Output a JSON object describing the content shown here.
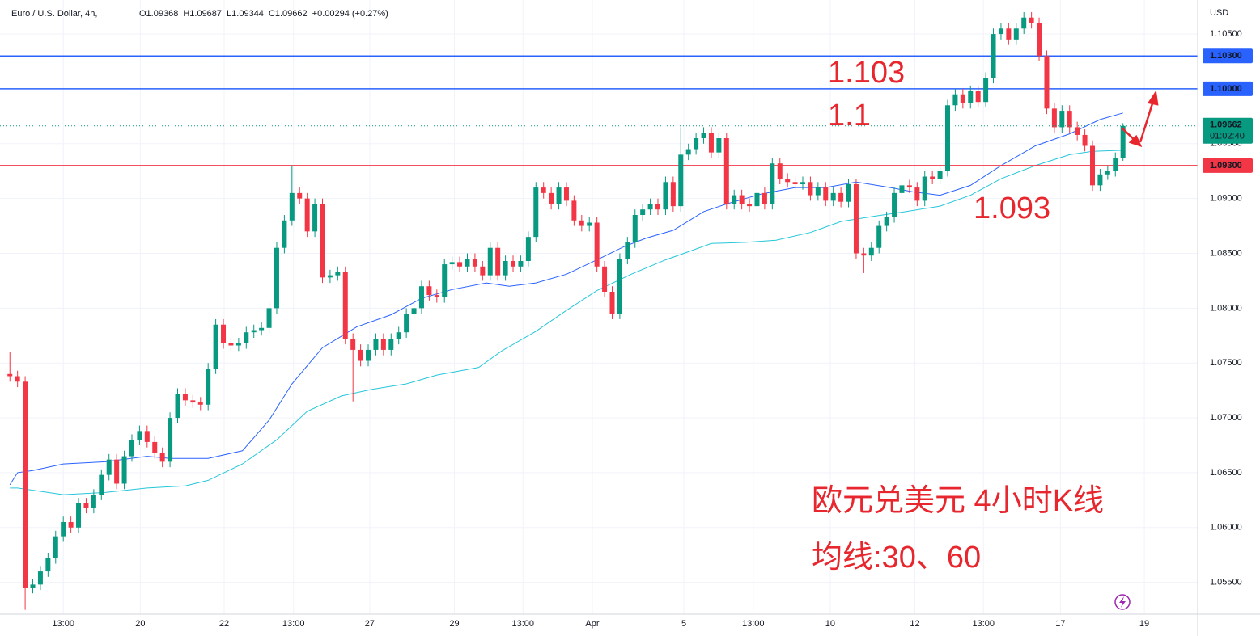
{
  "chart_data": {
    "type": "candlestick",
    "title": "Euro / U.S. Dollar, 4h,",
    "legend_values": [
      "O1.09368",
      "H1.09687",
      "L1.09344",
      "C1.09662",
      "+0.00294 (+0.27%)"
    ],
    "currency": "USD",
    "up_color": "#089981",
    "down_color": "#f23645",
    "open": [
      1.074,
      1.0738,
      1.0733,
      1.0545,
      1.0548,
      1.056,
      1.0572,
      1.0592,
      1.0605,
      1.06,
      1.0622,
      1.0618,
      1.063,
      1.0648,
      1.0662,
      1.064,
      1.0665,
      1.068,
      1.0688,
      1.0678,
      1.0668,
      1.066,
      1.07,
      1.0722,
      1.0716,
      1.0714,
      1.0712,
      1.0745,
      1.0785,
      1.0768,
      1.0766,
      1.0768,
      1.0778,
      1.078,
      1.0782,
      1.08,
      1.0855,
      1.088,
      1.0905,
      1.09,
      1.087,
      1.0895,
      1.0828,
      1.083,
      1.0833,
      1.0772,
      1.0762,
      1.0752,
      1.0762,
      1.0772,
      1.0762,
      1.0772,
      1.0778,
      1.0795,
      1.08,
      1.082,
      1.0812,
      1.081,
      1.084,
      1.0842,
      1.0838,
      1.0845,
      1.0838,
      1.083,
      1.0855,
      1.083,
      1.0843,
      1.0838,
      1.0843,
      1.0865,
      1.091,
      1.0905,
      1.0895,
      1.091,
      1.0898,
      1.088,
      1.0875,
      1.0878,
      1.0838,
      1.0815,
      1.0795,
      1.0845,
      1.086,
      1.0885,
      1.089,
      1.0895,
      1.089,
      1.0915,
      1.0893,
      1.094,
      1.0945,
      1.0955,
      1.096,
      1.0942,
      1.0955,
      1.0895,
      1.0903,
      1.0895,
      1.0893,
      1.0905,
      1.0895,
      1.0932,
      1.0918,
      1.0915,
      1.0913,
      1.0915,
      1.0903,
      1.091,
      1.0898,
      1.0905,
      1.0897,
      1.0913,
      1.085,
      1.0848,
      1.0855,
      1.0875,
      1.0883,
      1.0905,
      1.0912,
      1.091,
      1.0898,
      1.092,
      1.0918,
      1.0925,
      1.0985,
      1.0995,
      1.0987,
      1.0998,
      1.0988,
      1.101,
      1.105,
      1.1055,
      1.1045,
      1.1055,
      1.1065,
      1.106,
      1.103,
      1.0982,
      1.0965,
      1.098,
      1.0965,
      1.0958,
      1.0948,
      1.0912,
      1.0922,
      1.0925,
      1.09368
    ],
    "high": [
      1.076,
      1.0743,
      1.0738,
      1.0553,
      1.0565,
      1.0577,
      1.0597,
      1.061,
      1.061,
      1.0627,
      1.0627,
      1.0635,
      1.0653,
      1.0667,
      1.0667,
      1.067,
      1.0685,
      1.0693,
      1.0693,
      1.0683,
      1.0673,
      1.0705,
      1.0727,
      1.0727,
      1.0721,
      1.0719,
      1.075,
      1.079,
      1.079,
      1.0773,
      1.0773,
      1.0783,
      1.0785,
      1.0787,
      1.0805,
      1.086,
      1.0885,
      1.093,
      1.091,
      1.0905,
      1.09,
      1.09,
      1.0835,
      1.0838,
      1.0838,
      1.0777,
      1.0767,
      1.0767,
      1.0777,
      1.0777,
      1.0777,
      1.0783,
      1.08,
      1.0805,
      1.0825,
      1.0825,
      1.0817,
      1.0845,
      1.0847,
      1.0847,
      1.085,
      1.085,
      1.0843,
      1.086,
      1.086,
      1.0848,
      1.0848,
      1.0848,
      1.087,
      1.0915,
      1.0915,
      1.091,
      1.0915,
      1.0915,
      1.0903,
      1.0885,
      1.0883,
      1.0883,
      1.0843,
      1.082,
      1.085,
      1.0865,
      1.089,
      1.0895,
      1.09,
      1.09,
      1.092,
      1.092,
      1.0965,
      1.095,
      1.096,
      1.0965,
      1.0965,
      1.096,
      1.096,
      1.0908,
      1.0908,
      1.09,
      1.091,
      1.091,
      1.0937,
      1.0937,
      1.0923,
      1.092,
      1.092,
      1.092,
      1.0915,
      1.0915,
      1.091,
      1.091,
      1.0918,
      1.0918,
      1.0855,
      1.086,
      1.088,
      1.0888,
      1.091,
      1.0917,
      1.0917,
      1.0915,
      1.0925,
      1.0925,
      1.093,
      1.099,
      1.1,
      1.1,
      1.1003,
      1.1003,
      1.1015,
      1.1055,
      1.106,
      1.106,
      1.106,
      1.107,
      1.107,
      1.1065,
      1.1035,
      1.0987,
      1.0985,
      1.0985,
      1.097,
      1.0963,
      1.0953,
      1.0927,
      1.093,
      1.0942,
      1.09687
    ],
    "low": [
      1.0733,
      1.0728,
      1.0525,
      1.054,
      1.0543,
      1.0555,
      1.0567,
      1.0587,
      1.0595,
      1.0595,
      1.0613,
      1.0613,
      1.0625,
      1.0643,
      1.0635,
      1.0635,
      1.066,
      1.0675,
      1.0673,
      1.0663,
      1.0655,
      1.0655,
      1.0695,
      1.0711,
      1.0709,
      1.0707,
      1.0707,
      1.074,
      1.0763,
      1.0761,
      1.0761,
      1.0763,
      1.0773,
      1.0775,
      1.0777,
      1.0795,
      1.085,
      1.0875,
      1.0895,
      1.0865,
      1.0865,
      1.0823,
      1.0823,
      1.0825,
      1.0767,
      1.0715,
      1.0747,
      1.0747,
      1.0757,
      1.0757,
      1.0757,
      1.0767,
      1.0773,
      1.079,
      1.0795,
      1.0807,
      1.0805,
      1.0805,
      1.0835,
      1.0833,
      1.0833,
      1.0833,
      1.0825,
      1.0825,
      1.0825,
      1.0825,
      1.0833,
      1.0833,
      1.0838,
      1.086,
      1.09,
      1.089,
      1.089,
      1.0893,
      1.0875,
      1.087,
      1.087,
      1.0833,
      1.081,
      1.079,
      1.079,
      1.084,
      1.0855,
      1.088,
      1.0885,
      1.0885,
      1.0885,
      1.0888,
      1.0888,
      1.0935,
      1.094,
      1.095,
      1.0937,
      1.0937,
      1.089,
      1.089,
      1.089,
      1.0888,
      1.0888,
      1.089,
      1.089,
      1.0913,
      1.091,
      1.0908,
      1.0908,
      1.0898,
      1.0898,
      1.0893,
      1.0893,
      1.0892,
      1.0892,
      1.0845,
      1.0832,
      1.0843,
      1.085,
      1.087,
      1.0878,
      1.09,
      1.0905,
      1.0893,
      1.0893,
      1.0913,
      1.0913,
      1.092,
      1.098,
      1.0982,
      1.0982,
      1.0983,
      1.0983,
      1.1005,
      1.1045,
      1.104,
      1.104,
      1.105,
      1.1055,
      1.1025,
      1.0977,
      1.096,
      1.096,
      1.096,
      1.0953,
      1.0943,
      1.0907,
      1.0907,
      1.0917,
      1.092,
      1.09344
    ],
    "close": [
      1.0738,
      1.0733,
      1.0545,
      1.0548,
      1.056,
      1.0572,
      1.0592,
      1.0605,
      1.06,
      1.0622,
      1.0618,
      1.063,
      1.0648,
      1.0662,
      1.064,
      1.0665,
      1.068,
      1.0688,
      1.0678,
      1.0668,
      1.066,
      1.07,
      1.0722,
      1.0716,
      1.0714,
      1.0712,
      1.0745,
      1.0785,
      1.0768,
      1.0766,
      1.0768,
      1.0778,
      1.078,
      1.0782,
      1.08,
      1.0855,
      1.088,
      1.0905,
      1.09,
      1.087,
      1.0895,
      1.0828,
      1.083,
      1.0833,
      1.0772,
      1.0762,
      1.0752,
      1.0762,
      1.0772,
      1.0762,
      1.0772,
      1.0778,
      1.0795,
      1.08,
      1.082,
      1.0812,
      1.081,
      1.084,
      1.0842,
      1.0838,
      1.0845,
      1.0838,
      1.083,
      1.0855,
      1.083,
      1.0843,
      1.0838,
      1.0843,
      1.0865,
      1.091,
      1.0905,
      1.0895,
      1.091,
      1.0898,
      1.088,
      1.0875,
      1.0878,
      1.0838,
      1.0815,
      1.0795,
      1.0845,
      1.086,
      1.0885,
      1.089,
      1.0895,
      1.089,
      1.0915,
      1.0893,
      1.094,
      1.0945,
      1.0955,
      1.096,
      1.0942,
      1.0955,
      1.0895,
      1.0903,
      1.0895,
      1.0893,
      1.0905,
      1.0895,
      1.0932,
      1.0918,
      1.0915,
      1.0913,
      1.0915,
      1.0903,
      1.091,
      1.0898,
      1.0905,
      1.0897,
      1.0913,
      1.085,
      1.0848,
      1.0855,
      1.0875,
      1.0883,
      1.0905,
      1.0912,
      1.091,
      1.0898,
      1.092,
      1.0918,
      1.0925,
      1.0985,
      1.0995,
      1.0987,
      1.0998,
      1.0988,
      1.101,
      1.105,
      1.1055,
      1.1045,
      1.1055,
      1.1065,
      1.106,
      1.103,
      1.0982,
      1.0965,
      1.098,
      1.0965,
      1.0958,
      1.0948,
      1.0912,
      1.0922,
      1.0925,
      1.09368,
      1.09662
    ],
    "lines": [
      {
        "color": "#2962ff",
        "x": [
          0,
          1,
          3,
          7,
          12.5,
          18,
          21,
          26,
          30.5,
          34,
          37,
          41,
          45.5,
          50,
          54,
          58,
          62.5,
          65.5,
          69,
          73,
          77,
          80.5,
          83.5,
          87,
          91,
          94,
          98.5,
          103,
          107,
          111,
          115.5,
          118.5,
          122,
          126,
          130,
          134.5,
          139,
          143,
          146
        ],
        "values": [
          1.0639,
          1.065,
          1.0652,
          1.0658,
          1.066,
          1.0665,
          1.0663,
          1.0663,
          1.067,
          1.0698,
          1.0731,
          1.0764,
          1.0783,
          1.0794,
          1.0809,
          1.0817,
          1.0823,
          1.082,
          1.0823,
          1.0831,
          1.0844,
          1.0856,
          1.0864,
          1.0871,
          1.0888,
          1.0895,
          1.0904,
          1.091,
          1.091,
          1.0915,
          1.091,
          1.0906,
          1.0903,
          1.0912,
          1.093,
          1.0948,
          1.0959,
          1.0972,
          1.0978
        ]
      },
      {
        "color": "#26c6da",
        "x": [
          0,
          1,
          7,
          12.5,
          18,
          23,
          26,
          30.5,
          35,
          39,
          43.5,
          47.5,
          52,
          56,
          61.5,
          64.5,
          69,
          73,
          77,
          81.5,
          86,
          90,
          92,
          96.5,
          100.5,
          105,
          109,
          113.5,
          117.5,
          122,
          126,
          130,
          134.5,
          139,
          142,
          146
        ],
        "values": [
          1.0636,
          1.0636,
          1.063,
          1.0632,
          1.0636,
          1.0638,
          1.0643,
          1.0658,
          1.068,
          1.0706,
          1.072,
          1.0726,
          1.0731,
          1.0739,
          1.0746,
          1.0761,
          1.0779,
          1.0798,
          1.0816,
          1.0831,
          1.0844,
          1.0854,
          1.0859,
          1.086,
          1.0862,
          1.0869,
          1.0879,
          1.0884,
          1.0888,
          1.0893,
          1.0903,
          1.0918,
          1.093,
          1.094,
          1.0943,
          1.0944
        ]
      }
    ],
    "levels": [
      {
        "value": 1.103,
        "label": "1.10300",
        "color": "#2962ff"
      },
      {
        "value": 1.1,
        "label": "1.10000",
        "color": "#2962ff"
      },
      {
        "value": 1.093,
        "label": "1.09300",
        "color": "#f23645"
      }
    ],
    "last_price": {
      "value": 1.09662,
      "label": "1.09662",
      "countdown": "01:02:40"
    },
    "annotations": [
      "1.103",
      "1.1",
      "1.093",
      "欧元兑美元 4小时K线",
      "均线:30、60"
    ],
    "xlim": [
      -1.3,
      155.8
    ],
    "ylim": [
      1.0521,
      1.1081
    ],
    "xticks": [
      {
        "value": 7,
        "label": "13:00"
      },
      {
        "value": 17.1,
        "label": "20"
      },
      {
        "value": 28.1,
        "label": "22"
      },
      {
        "value": 37.2,
        "label": "13:00"
      },
      {
        "value": 47.2,
        "label": "27"
      },
      {
        "value": 58.3,
        "label": "29"
      },
      {
        "value": 67.3,
        "label": "13:00"
      },
      {
        "value": 76.4,
        "label": "Apr"
      },
      {
        "value": 88.4,
        "label": "5"
      },
      {
        "value": 97.5,
        "label": "13:00"
      },
      {
        "value": 107.6,
        "label": "10"
      },
      {
        "value": 118.7,
        "label": "12"
      },
      {
        "value": 127.7,
        "label": "13:00"
      },
      {
        "value": 137.8,
        "label": "17"
      },
      {
        "value": 148.8,
        "label": "19"
      }
    ],
    "yticks": [
      {
        "value": 1.105,
        "label": "1.10500"
      },
      {
        "value": 1.1,
        "label": "1.10000"
      },
      {
        "value": 1.095,
        "label": "1.09500"
      },
      {
        "value": 1.09,
        "label": "1.09000"
      },
      {
        "value": 1.085,
        "label": "1.08500"
      },
      {
        "value": 1.08,
        "label": "1.08000"
      },
      {
        "value": 1.075,
        "label": "1.07500"
      },
      {
        "value": 1.07,
        "label": "1.07000"
      },
      {
        "value": 1.065,
        "label": "1.06500"
      },
      {
        "value": 1.06,
        "label": "1.06000"
      },
      {
        "value": 1.055,
        "label": "1.05500"
      }
    ],
    "grid": true
  }
}
